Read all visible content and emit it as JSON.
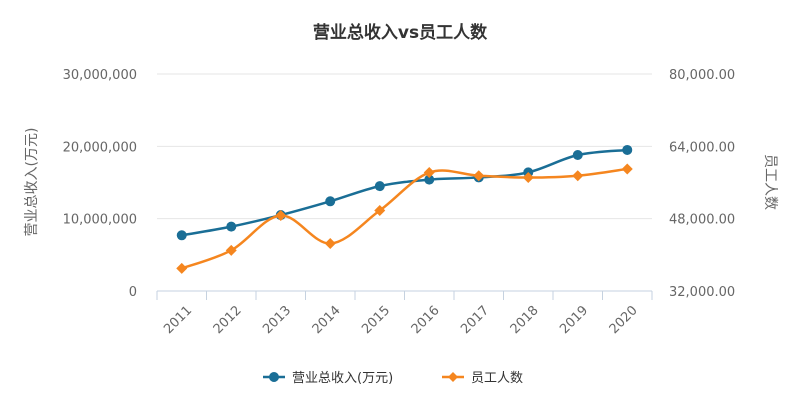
{
  "chart_data": {
    "type": "line",
    "title": "营业总收入vs员工人数",
    "categories": [
      "2011",
      "2012",
      "2013",
      "2014",
      "2015",
      "2016",
      "2017",
      "2018",
      "2019",
      "2020"
    ],
    "series": [
      {
        "name": "营业总收入(万元)",
        "axis": "left",
        "color": "#1a6e96",
        "marker": "circle",
        "values": [
          7700000,
          8900000,
          10500000,
          12400000,
          14500000,
          15400000,
          15700000,
          16400000,
          18800000,
          19500000
        ]
      },
      {
        "name": "员工人数",
        "axis": "right",
        "color": "#f5861f",
        "marker": "diamond",
        "values": [
          37000,
          41000,
          48700,
          42500,
          49800,
          58200,
          57500,
          57100,
          57500,
          59000
        ]
      }
    ],
    "left_axis": {
      "label": "营业总收入(万元)",
      "min": 0,
      "max": 30000000,
      "ticks": [
        0,
        10000000,
        20000000,
        30000000
      ],
      "tick_labels": [
        "0",
        "10,000,000",
        "20,000,000",
        "30,000,000"
      ]
    },
    "right_axis": {
      "label": "员工人数",
      "min": 32000,
      "max": 80000,
      "ticks": [
        32000,
        48000,
        64000,
        80000
      ],
      "tick_labels": [
        "32,000.00",
        "48,000.00",
        "64,000.00",
        "80,000.00"
      ]
    },
    "grid": true,
    "legend_position": "bottom-center",
    "xlabel": ""
  }
}
